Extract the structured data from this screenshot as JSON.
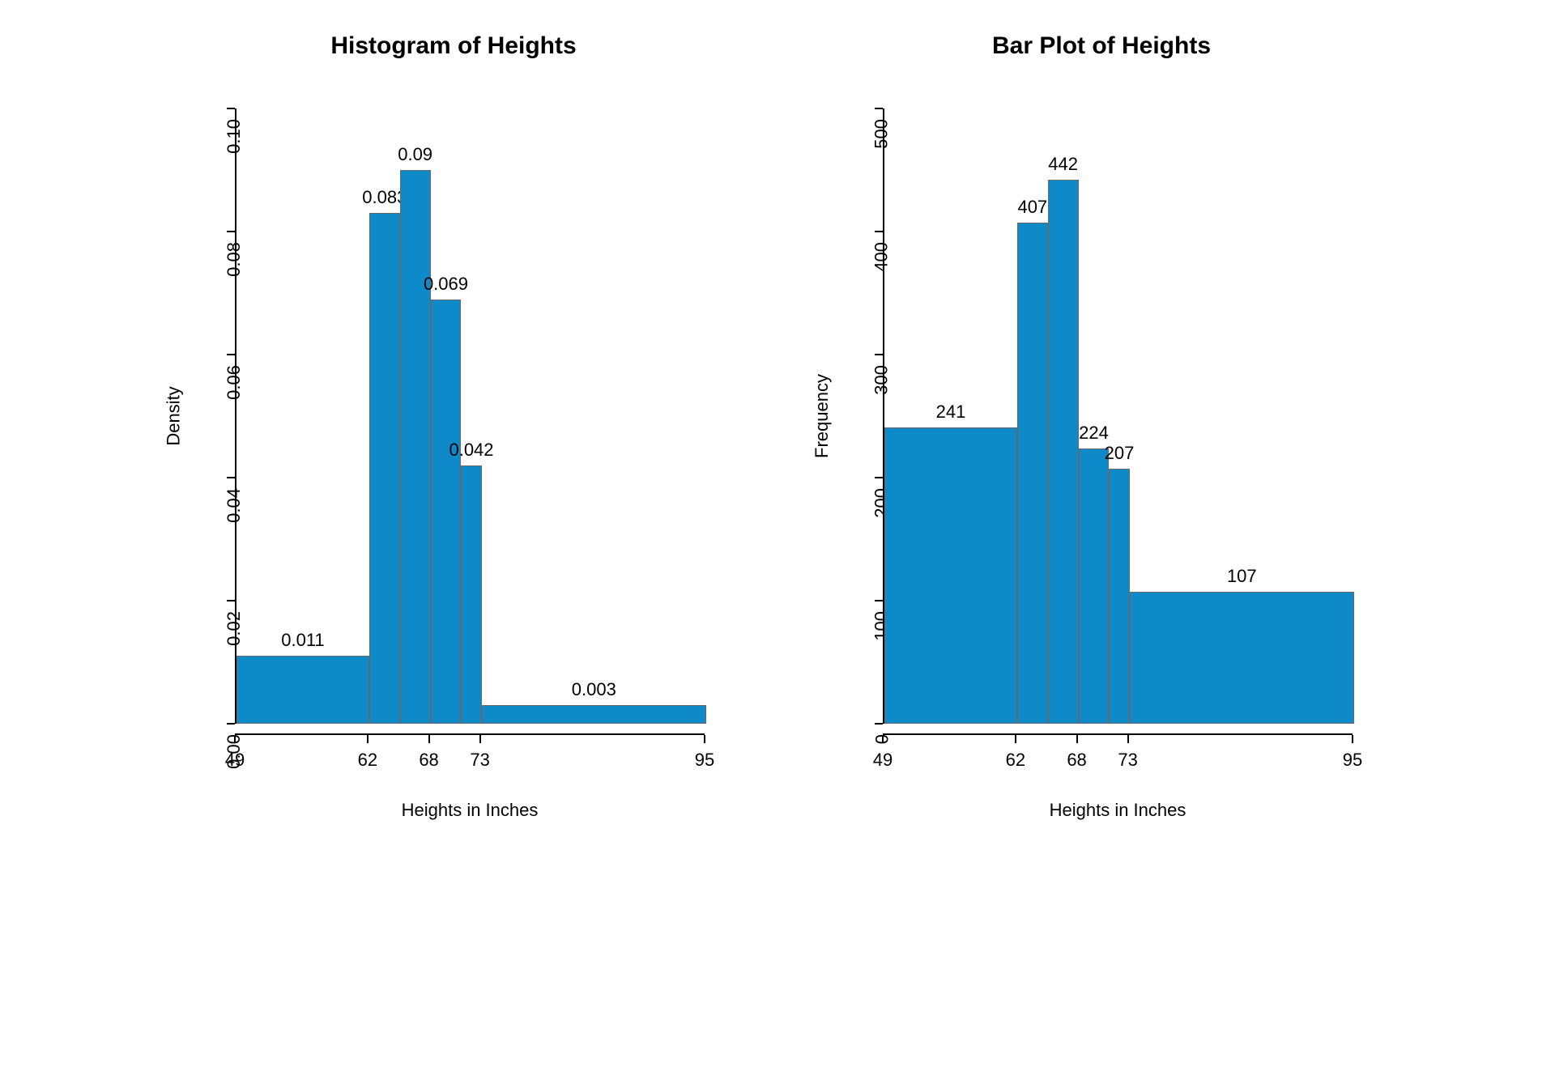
{
  "left_chart": {
    "type": "histogram",
    "title": "Histogram of Heights",
    "xlabel": "Heights in Inches",
    "ylabel": "Density",
    "bar_color": "#0f8ac8",
    "bar_border_color": "#6a6a6a",
    "background_color": "#ffffff",
    "axis_color": "#000000",
    "title_fontsize": 30,
    "label_fontsize": 22,
    "tick_fontsize": 22,
    "xlim": [
      49,
      95
    ],
    "ylim": [
      0,
      0.1
    ],
    "xticks": [
      49,
      62,
      68,
      73,
      95
    ],
    "yticks": [
      0.0,
      0.02,
      0.04,
      0.06,
      0.08,
      0.1
    ],
    "bins": [
      {
        "start": 49,
        "end": 62,
        "density": 0.011,
        "label": "0.011"
      },
      {
        "start": 62,
        "end": 65,
        "density": 0.083,
        "label": "0.083"
      },
      {
        "start": 65,
        "end": 68,
        "density": 0.09,
        "label": "0.09"
      },
      {
        "start": 68,
        "end": 71,
        "density": 0.069,
        "label": "0.069"
      },
      {
        "start": 71,
        "end": 73,
        "density": 0.042,
        "label": "0.042"
      },
      {
        "start": 73,
        "end": 95,
        "density": 0.003,
        "label": "0.003"
      }
    ]
  },
  "right_chart": {
    "type": "bar",
    "title": "Bar Plot of Heights",
    "xlabel": "Heights in Inches",
    "ylabel": "Frequency",
    "bar_color": "#0f8ac8",
    "bar_border_color": "#6a6a6a",
    "background_color": "#ffffff",
    "axis_color": "#000000",
    "title_fontsize": 30,
    "label_fontsize": 22,
    "tick_fontsize": 22,
    "xlim": [
      49,
      95
    ],
    "ylim": [
      0,
      500
    ],
    "xticks": [
      49,
      62,
      68,
      73,
      95
    ],
    "yticks": [
      0,
      100,
      200,
      300,
      400,
      500
    ],
    "bins": [
      {
        "start": 49,
        "end": 62,
        "frequency": 241,
        "label": "241"
      },
      {
        "start": 62,
        "end": 65,
        "frequency": 407,
        "label": "407"
      },
      {
        "start": 65,
        "end": 68,
        "frequency": 442,
        "label": "442"
      },
      {
        "start": 68,
        "end": 71,
        "frequency": 224,
        "label": "224"
      },
      {
        "start": 71,
        "end": 73,
        "frequency": 207,
        "label": "207"
      },
      {
        "start": 73,
        "end": 95,
        "frequency": 107,
        "label": "107"
      }
    ]
  }
}
